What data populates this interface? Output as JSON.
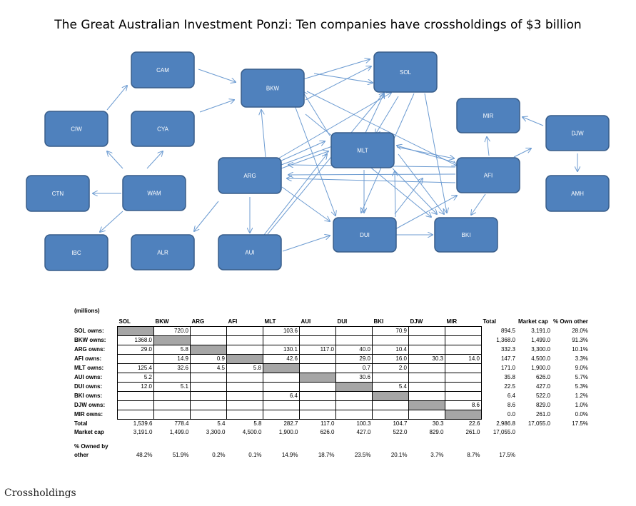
{
  "title": "The Great Australian Investment Ponzi: Ten companies have crossholdings of $3 billion",
  "caption": "Crossholdings",
  "diagram": {
    "nodes": [
      {
        "id": "CAM",
        "label": "CAM"
      },
      {
        "id": "BKW",
        "label": "BKW"
      },
      {
        "id": "SOL",
        "label": "SOL"
      },
      {
        "id": "CIW",
        "label": "CIW"
      },
      {
        "id": "CYA",
        "label": "CYA"
      },
      {
        "id": "MIR",
        "label": "MIR"
      },
      {
        "id": "DJW",
        "label": "DJW"
      },
      {
        "id": "MLT",
        "label": "MLT"
      },
      {
        "id": "ARG",
        "label": "ARG"
      },
      {
        "id": "AFI",
        "label": "AFI"
      },
      {
        "id": "CTN",
        "label": "CTN"
      },
      {
        "id": "WAM",
        "label": "WAM"
      },
      {
        "id": "AMH",
        "label": "AMH"
      },
      {
        "id": "DUI",
        "label": "DUI"
      },
      {
        "id": "BKI",
        "label": "BKI"
      },
      {
        "id": "IBC",
        "label": "IBC"
      },
      {
        "id": "ALR",
        "label": "ALR"
      },
      {
        "id": "AUI",
        "label": "AUI"
      }
    ]
  },
  "table": {
    "units": "(millions)",
    "columns": [
      "SOL",
      "BKW",
      "ARG",
      "AFI",
      "MLT",
      "AUI",
      "DUI",
      "BKI",
      "DJW",
      "MIR",
      "Total",
      "Market cap",
      "% Own other"
    ],
    "rows": [
      {
        "label": "SOL owns:",
        "cells": [
          "",
          "720.0",
          "",
          "",
          "103.6",
          "",
          "",
          "70.9",
          "",
          ""
        ],
        "total": "894.5",
        "mcap": "3,191.0",
        "pct": "28.0%",
        "grey": 0
      },
      {
        "label": "BKW owns:",
        "cells": [
          "1368.0",
          "",
          "",
          "",
          "",
          "",
          "",
          "",
          "",
          ""
        ],
        "total": "1,368.0",
        "mcap": "1,499.0",
        "pct": "91.3%",
        "grey": 1
      },
      {
        "label": "ARG owns:",
        "cells": [
          "29.0",
          "5.8",
          "",
          "",
          "130.1",
          "117.0",
          "40.0",
          "10.4",
          "",
          ""
        ],
        "total": "332.3",
        "mcap": "3,300.0",
        "pct": "10.1%",
        "grey": 2
      },
      {
        "label": "AFI owns:",
        "cells": [
          "",
          "14.9",
          "0.9",
          "",
          "42.6",
          "",
          "29.0",
          "16.0",
          "30.3",
          "14.0"
        ],
        "total": "147.7",
        "mcap": "4,500.0",
        "pct": "3.3%",
        "grey": 3
      },
      {
        "label": "MLT owns:",
        "cells": [
          "125.4",
          "32.6",
          "4.5",
          "5.8",
          "",
          "",
          "0.7",
          "2.0",
          "",
          ""
        ],
        "total": "171.0",
        "mcap": "1,900.0",
        "pct": "9.0%",
        "grey": 4
      },
      {
        "label": "AUI owns:",
        "cells": [
          "5.2",
          "",
          "",
          "",
          "",
          "",
          "30.6",
          "",
          "",
          ""
        ],
        "total": "35.8",
        "mcap": "626.0",
        "pct": "5.7%",
        "grey": 5
      },
      {
        "label": "DUI owns:",
        "cells": [
          "12.0",
          "5.1",
          "",
          "",
          "",
          "",
          "",
          "5.4",
          "",
          ""
        ],
        "total": "22.5",
        "mcap": "427.0",
        "pct": "5.3%",
        "grey": 6
      },
      {
        "label": "BKI owns:",
        "cells": [
          "",
          "",
          "",
          "",
          "6.4",
          "",
          "",
          "",
          "",
          ""
        ],
        "total": "6.4",
        "mcap": "522.0",
        "pct": "1.2%",
        "grey": 7
      },
      {
        "label": "DJW owns:",
        "cells": [
          "",
          "",
          "",
          "",
          "",
          "",
          "",
          "",
          "",
          "8.6"
        ],
        "total": "8.6",
        "mcap": "829.0",
        "pct": "1.0%",
        "grey": 8
      },
      {
        "label": "MIR owns:",
        "cells": [
          "",
          "",
          "",
          "",
          "",
          "",
          "",
          "",
          "",
          ""
        ],
        "total": "0.0",
        "mcap": "261.0",
        "pct": "0.0%",
        "grey": 9
      }
    ],
    "total_row": {
      "label": "Total",
      "cells": [
        "1,539.6",
        "778.4",
        "5.4",
        "5.8",
        "282.7",
        "117.0",
        "100.3",
        "104.7",
        "30.3",
        "22.6"
      ],
      "total": "2,986.8",
      "mcap": "17,055.0",
      "pct": "17.5%"
    },
    "mcap_row": {
      "label": "Market cap",
      "cells": [
        "3,191.0",
        "1,499.0",
        "3,300.0",
        "4,500.0",
        "1,900.0",
        "626.0",
        "427.0",
        "522.0",
        "829.0",
        "261.0"
      ],
      "total": "17,055.0"
    },
    "owned_row": {
      "label1": "% Owned by",
      "label2": "other",
      "cells": [
        "48.2%",
        "51.9%",
        "0.2%",
        "0.1%",
        "14.9%",
        "18.7%",
        "23.5%",
        "20.1%",
        "3.7%",
        "8.7%"
      ],
      "total": "17.5%"
    }
  }
}
